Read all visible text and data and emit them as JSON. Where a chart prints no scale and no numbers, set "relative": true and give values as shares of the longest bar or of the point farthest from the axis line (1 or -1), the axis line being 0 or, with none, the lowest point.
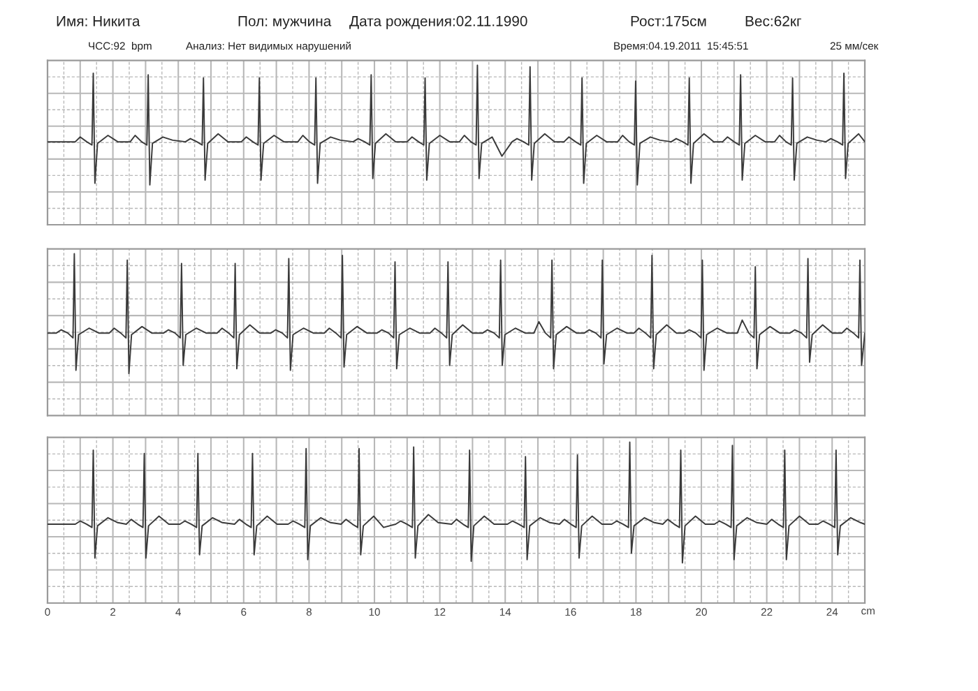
{
  "chart_data": [
    {
      "type": "line",
      "relative": true,
      "color": "#3a3a3a",
      "grid": true,
      "tick_labels": false,
      "xlim": [
        0,
        25
      ],
      "annotations": [
        "Имя: Никита",
        "Пол: мужчина",
        "Дата рождения:02.11.1990",
        "Рост:175см",
        "Вес:62кг",
        "ЧСС:92  bpm",
        "Анализ: Нет видимых нарушений",
        "Время:04.19.2011  15:45:51",
        "25 мм/сек"
      ],
      "xticks": [
        0,
        {
          "value": 0.5,
          "label": null
        },
        {
          "value": 1,
          "label": null
        },
        {
          "value": 1.5,
          "label": null
        },
        2,
        {
          "value": 2.5,
          "label": null
        },
        {
          "value": 3,
          "label": null
        },
        {
          "value": 3.5,
          "label": null
        },
        4,
        {
          "value": 4.5,
          "label": null
        },
        {
          "value": 5,
          "label": null
        },
        {
          "value": 5.5,
          "label": null
        },
        6,
        {
          "value": 6.5,
          "label": null
        },
        {
          "value": 7,
          "label": null
        },
        {
          "value": 7.5,
          "label": null
        },
        8,
        {
          "value": 8.5,
          "label": null
        },
        {
          "value": 9,
          "label": null
        },
        {
          "value": 9.5,
          "label": null
        },
        10,
        {
          "value": 10.5,
          "label": null
        },
        {
          "value": 11,
          "label": null
        },
        {
          "value": 11.5,
          "label": null
        },
        12,
        {
          "value": 12.5,
          "label": null
        },
        {
          "value": 13,
          "label": null
        },
        {
          "value": 13.5,
          "label": null
        },
        14,
        {
          "value": 14.5,
          "label": null
        },
        {
          "value": 15,
          "label": null
        },
        {
          "value": 15.5,
          "label": null
        },
        16,
        {
          "value": 16.5,
          "label": null
        },
        {
          "value": 17,
          "label": null
        },
        {
          "value": 17.5,
          "label": null
        },
        18,
        {
          "value": 18.5,
          "label": null
        },
        {
          "value": 19,
          "label": null
        },
        {
          "value": 19.5,
          "label": null
        },
        20,
        {
          "value": 20.5,
          "label": null
        },
        {
          "value": 21,
          "label": null
        },
        {
          "value": 21.5,
          "label": null
        },
        22,
        {
          "value": 22.5,
          "label": null
        },
        {
          "value": 23,
          "label": null
        },
        {
          "value": 23.5,
          "label": null
        },
        24,
        {
          "value": 24.5,
          "label": null
        }
      ],
      "x": [
        0,
        0.85,
        1.0,
        1.2,
        1.36,
        1.4,
        1.45,
        1.53,
        1.85,
        2.15,
        2.53,
        2.68,
        2.88,
        3.04,
        3.08,
        3.13,
        3.21,
        3.53,
        3.83,
        4.22,
        4.37,
        4.57,
        4.73,
        4.77,
        4.82,
        4.9,
        5.22,
        5.52,
        5.93,
        6.08,
        6.28,
        6.44,
        6.48,
        6.53,
        6.61,
        6.93,
        7.23,
        7.66,
        7.81,
        8.01,
        8.17,
        8.21,
        8.26,
        8.34,
        8.66,
        8.96,
        9.35,
        9.5,
        9.7,
        9.86,
        9.9,
        9.95,
        10.03,
        10.35,
        10.65,
        11.0,
        11.15,
        11.35,
        11.51,
        11.55,
        11.6,
        11.68,
        12.0,
        12.3,
        12.6,
        12.75,
        12.95,
        13.11,
        13.15,
        13.2,
        13.28,
        13.6,
        13.9,
        14.21,
        14.36,
        14.56,
        14.72,
        14.76,
        14.81,
        14.89,
        15.21,
        15.51,
        15.8,
        15.95,
        16.15,
        16.31,
        16.35,
        16.4,
        16.48,
        16.8,
        17.1,
        17.44,
        17.59,
        17.79,
        17.95,
        17.99,
        18.04,
        18.12,
        18.44,
        18.74,
        19.08,
        19.23,
        19.43,
        19.59,
        19.63,
        19.68,
        19.76,
        20.08,
        20.38,
        20.65,
        20.8,
        21.0,
        21.16,
        21.2,
        21.25,
        21.33,
        21.65,
        21.95,
        22.24,
        22.39,
        22.59,
        22.75,
        22.79,
        22.84,
        22.92,
        23.24,
        23.54,
        23.81,
        23.96,
        24.16,
        24.32,
        24.36,
        24.41,
        24.49,
        24.81,
        25
      ],
      "values": [
        0.52,
        0.52,
        0.55,
        0.52,
        0.5,
        0.95,
        0.26,
        0.51,
        0.56,
        0.52,
        0.52,
        0.56,
        0.52,
        0.5,
        0.94,
        0.25,
        0.51,
        0.55,
        0.53,
        0.52,
        0.54,
        0.52,
        0.5,
        0.92,
        0.28,
        0.51,
        0.57,
        0.52,
        0.52,
        0.55,
        0.52,
        0.5,
        0.92,
        0.28,
        0.51,
        0.56,
        0.52,
        0.52,
        0.56,
        0.52,
        0.5,
        0.92,
        0.26,
        0.51,
        0.55,
        0.53,
        0.52,
        0.54,
        0.52,
        0.5,
        0.94,
        0.29,
        0.51,
        0.57,
        0.52,
        0.52,
        0.55,
        0.52,
        0.5,
        0.92,
        0.28,
        0.51,
        0.56,
        0.52,
        0.52,
        0.56,
        0.52,
        0.5,
        1.0,
        0.29,
        0.51,
        0.55,
        0.43,
        0.52,
        0.54,
        0.52,
        0.5,
        0.99,
        0.28,
        0.51,
        0.57,
        0.52,
        0.52,
        0.55,
        0.52,
        0.5,
        0.92,
        0.26,
        0.51,
        0.56,
        0.52,
        0.52,
        0.56,
        0.52,
        0.5,
        0.9,
        0.25,
        0.51,
        0.55,
        0.53,
        0.52,
        0.54,
        0.52,
        0.5,
        0.92,
        0.26,
        0.51,
        0.57,
        0.52,
        0.52,
        0.55,
        0.52,
        0.5,
        0.94,
        0.28,
        0.51,
        0.56,
        0.52,
        0.52,
        0.56,
        0.52,
        0.5,
        0.92,
        0.28,
        0.51,
        0.55,
        0.53,
        0.52,
        0.54,
        0.52,
        0.5,
        0.95,
        0.29,
        0.51,
        0.57,
        0.52
      ]
    },
    {
      "type": "line",
      "relative": true,
      "color": "#3a3a3a",
      "grid": true,
      "tick_labels": false,
      "xlim": [
        0,
        25
      ],
      "xticks": [
        0,
        {
          "value": 0.5,
          "label": null
        },
        {
          "value": 1,
          "label": null
        },
        {
          "value": 1.5,
          "label": null
        },
        2,
        {
          "value": 2.5,
          "label": null
        },
        {
          "value": 3,
          "label": null
        },
        {
          "value": 3.5,
          "label": null
        },
        4,
        {
          "value": 4.5,
          "label": null
        },
        {
          "value": 5,
          "label": null
        },
        {
          "value": 5.5,
          "label": null
        },
        6,
        {
          "value": 6.5,
          "label": null
        },
        {
          "value": 7,
          "label": null
        },
        {
          "value": 7.5,
          "label": null
        },
        8,
        {
          "value": 8.5,
          "label": null
        },
        {
          "value": 9,
          "label": null
        },
        {
          "value": 9.5,
          "label": null
        },
        10,
        {
          "value": 10.5,
          "label": null
        },
        {
          "value": 11,
          "label": null
        },
        {
          "value": 11.5,
          "label": null
        },
        12,
        {
          "value": 12.5,
          "label": null
        },
        {
          "value": 13,
          "label": null
        },
        {
          "value": 13.5,
          "label": null
        },
        14,
        {
          "value": 14.5,
          "label": null
        },
        {
          "value": 15,
          "label": null
        },
        {
          "value": 15.5,
          "label": null
        },
        16,
        {
          "value": 16.5,
          "label": null
        },
        {
          "value": 17,
          "label": null
        },
        {
          "value": 17.5,
          "label": null
        },
        18,
        {
          "value": 18.5,
          "label": null
        },
        {
          "value": 19,
          "label": null
        },
        {
          "value": 19.5,
          "label": null
        },
        20,
        {
          "value": 20.5,
          "label": null
        },
        {
          "value": 21,
          "label": null
        },
        {
          "value": 21.5,
          "label": null
        },
        22,
        {
          "value": 22.5,
          "label": null
        },
        {
          "value": 23,
          "label": null
        },
        {
          "value": 23.5,
          "label": null
        },
        24,
        {
          "value": 24.5,
          "label": null
        }
      ],
      "x": [
        0,
        0.27,
        0.42,
        0.62,
        0.78,
        0.82,
        0.87,
        0.95,
        1.27,
        1.57,
        1.89,
        2.04,
        2.24,
        2.4,
        2.44,
        2.49,
        2.57,
        2.89,
        3.19,
        3.55,
        3.7,
        3.9,
        4.06,
        4.1,
        4.15,
        4.23,
        4.55,
        4.85,
        5.19,
        5.34,
        5.54,
        5.7,
        5.74,
        5.79,
        5.87,
        6.19,
        6.49,
        6.83,
        6.98,
        7.18,
        7.34,
        7.38,
        7.43,
        7.51,
        7.83,
        8.13,
        8.47,
        8.62,
        8.82,
        8.98,
        9.02,
        9.07,
        9.15,
        9.47,
        9.77,
        10.08,
        10.23,
        10.43,
        10.59,
        10.63,
        10.68,
        10.76,
        11.08,
        11.38,
        11.7,
        11.85,
        12.05,
        12.21,
        12.25,
        12.3,
        12.38,
        12.7,
        13.0,
        13.31,
        13.46,
        13.66,
        13.82,
        13.86,
        13.91,
        13.99,
        14.31,
        14.61,
        14.88,
        15.03,
        15.23,
        15.39,
        15.43,
        15.48,
        15.56,
        15.88,
        16.18,
        16.42,
        16.57,
        16.77,
        16.93,
        16.97,
        17.02,
        17.1,
        17.42,
        17.72,
        17.94,
        18.09,
        18.29,
        18.45,
        18.49,
        18.54,
        18.62,
        18.94,
        19.24,
        19.48,
        19.63,
        19.83,
        19.99,
        20.03,
        20.08,
        20.16,
        20.48,
        20.78,
        21.1,
        21.25,
        21.45,
        21.61,
        21.65,
        21.7,
        21.78,
        22.1,
        22.4,
        22.71,
        22.86,
        23.06,
        23.22,
        23.26,
        23.31,
        23.39,
        23.71,
        24.01,
        24.3,
        24.45,
        24.65,
        24.81,
        24.85,
        24.9,
        25
      ],
      "values": [
        0.51,
        0.51,
        0.53,
        0.51,
        0.48,
        1.0,
        0.28,
        0.5,
        0.54,
        0.51,
        0.51,
        0.54,
        0.51,
        0.48,
        0.96,
        0.26,
        0.5,
        0.55,
        0.51,
        0.51,
        0.53,
        0.51,
        0.48,
        0.94,
        0.31,
        0.5,
        0.54,
        0.51,
        0.51,
        0.54,
        0.51,
        0.48,
        0.94,
        0.29,
        0.5,
        0.56,
        0.51,
        0.51,
        0.53,
        0.51,
        0.48,
        0.97,
        0.28,
        0.5,
        0.54,
        0.51,
        0.51,
        0.54,
        0.51,
        0.48,
        0.99,
        0.3,
        0.5,
        0.55,
        0.51,
        0.51,
        0.53,
        0.51,
        0.48,
        0.95,
        0.29,
        0.5,
        0.54,
        0.51,
        0.51,
        0.54,
        0.51,
        0.48,
        0.95,
        0.31,
        0.5,
        0.56,
        0.51,
        0.51,
        0.53,
        0.51,
        0.48,
        0.96,
        0.31,
        0.5,
        0.54,
        0.51,
        0.51,
        0.58,
        0.51,
        0.48,
        0.96,
        0.29,
        0.5,
        0.55,
        0.51,
        0.51,
        0.53,
        0.51,
        0.48,
        0.96,
        0.32,
        0.5,
        0.54,
        0.51,
        0.51,
        0.54,
        0.51,
        0.48,
        0.99,
        0.29,
        0.5,
        0.56,
        0.51,
        0.51,
        0.53,
        0.51,
        0.48,
        0.96,
        0.28,
        0.5,
        0.54,
        0.51,
        0.51,
        0.59,
        0.51,
        0.48,
        0.92,
        0.29,
        0.5,
        0.55,
        0.51,
        0.51,
        0.53,
        0.51,
        0.48,
        0.97,
        0.33,
        0.5,
        0.56,
        0.51,
        0.51,
        0.54,
        0.51,
        0.48,
        0.96,
        0.31,
        0.51
      ]
    },
    {
      "type": "line",
      "relative": true,
      "color": "#3a3a3a",
      "grid": true,
      "tick_labels": "x",
      "xlim": [
        0,
        25
      ],
      "xlabel": "cm",
      "xticks": [
        0,
        {
          "value": 0.5,
          "label": null
        },
        {
          "value": 1,
          "label": null
        },
        {
          "value": 1.5,
          "label": null
        },
        2,
        {
          "value": 2.5,
          "label": null
        },
        {
          "value": 3,
          "label": null
        },
        {
          "value": 3.5,
          "label": null
        },
        4,
        {
          "value": 4.5,
          "label": null
        },
        {
          "value": 5,
          "label": null
        },
        {
          "value": 5.5,
          "label": null
        },
        6,
        {
          "value": 6.5,
          "label": null
        },
        {
          "value": 7,
          "label": null
        },
        {
          "value": 7.5,
          "label": null
        },
        8,
        {
          "value": 8.5,
          "label": null
        },
        {
          "value": 9,
          "label": null
        },
        {
          "value": 9.5,
          "label": null
        },
        10,
        {
          "value": 10.5,
          "label": null
        },
        {
          "value": 11,
          "label": null
        },
        {
          "value": 11.5,
          "label": null
        },
        12,
        {
          "value": 12.5,
          "label": null
        },
        {
          "value": 13,
          "label": null
        },
        {
          "value": 13.5,
          "label": null
        },
        14,
        {
          "value": 14.5,
          "label": null
        },
        {
          "value": 15,
          "label": null
        },
        {
          "value": 15.5,
          "label": null
        },
        16,
        {
          "value": 16.5,
          "label": null
        },
        {
          "value": 17,
          "label": null
        },
        {
          "value": 17.5,
          "label": null
        },
        18,
        {
          "value": 18.5,
          "label": null
        },
        {
          "value": 19,
          "label": null
        },
        {
          "value": 19.5,
          "label": null
        },
        20,
        {
          "value": 20.5,
          "label": null
        },
        {
          "value": 21,
          "label": null
        },
        {
          "value": 21.5,
          "label": null
        },
        22,
        {
          "value": 22.5,
          "label": null
        },
        {
          "value": 23,
          "label": null
        },
        {
          "value": 23.5,
          "label": null
        },
        24,
        {
          "value": 24.5,
          "label": null
        }
      ],
      "x": [
        0,
        0.85,
        1.0,
        1.2,
        1.36,
        1.4,
        1.45,
        1.53,
        1.85,
        2.15,
        2.41,
        2.56,
        2.76,
        2.92,
        2.96,
        3.01,
        3.09,
        3.41,
        3.71,
        4.05,
        4.2,
        4.4,
        4.56,
        4.6,
        4.65,
        4.73,
        5.05,
        5.35,
        5.72,
        5.87,
        6.07,
        6.23,
        6.27,
        6.32,
        6.4,
        6.72,
        7.02,
        7.36,
        7.51,
        7.71,
        7.87,
        7.91,
        7.96,
        8.04,
        8.36,
        8.66,
        8.98,
        9.13,
        9.33,
        9.49,
        9.53,
        9.58,
        9.66,
        9.98,
        10.28,
        10.65,
        10.8,
        11.0,
        11.16,
        11.2,
        11.25,
        11.33,
        11.65,
        11.95,
        12.36,
        12.51,
        12.71,
        12.87,
        12.91,
        12.96,
        13.04,
        13.36,
        13.66,
        14.07,
        14.22,
        14.42,
        14.58,
        14.62,
        14.67,
        14.75,
        15.07,
        15.37,
        15.66,
        15.81,
        16.01,
        16.17,
        16.21,
        16.26,
        16.34,
        16.66,
        16.96,
        17.26,
        17.41,
        17.61,
        17.77,
        17.81,
        17.86,
        17.94,
        18.26,
        18.56,
        18.82,
        18.97,
        19.17,
        19.33,
        19.37,
        19.42,
        19.5,
        19.82,
        20.12,
        20.4,
        20.55,
        20.75,
        20.91,
        20.95,
        21.0,
        21.08,
        21.4,
        21.7,
        22.0,
        22.15,
        22.35,
        22.51,
        22.55,
        22.6,
        22.68,
        23.0,
        23.3,
        23.57,
        23.72,
        23.92,
        24.08,
        24.12,
        24.17,
        24.25,
        24.57,
        24.87,
        25
      ],
      "values": [
        0.49,
        0.49,
        0.51,
        0.49,
        0.47,
        0.95,
        0.28,
        0.48,
        0.53,
        0.5,
        0.49,
        0.52,
        0.49,
        0.47,
        0.93,
        0.28,
        0.48,
        0.54,
        0.49,
        0.49,
        0.51,
        0.49,
        0.47,
        0.93,
        0.3,
        0.48,
        0.53,
        0.5,
        0.49,
        0.52,
        0.49,
        0.47,
        0.93,
        0.3,
        0.48,
        0.54,
        0.49,
        0.49,
        0.51,
        0.49,
        0.47,
        0.96,
        0.27,
        0.48,
        0.53,
        0.5,
        0.49,
        0.52,
        0.49,
        0.47,
        0.96,
        0.3,
        0.48,
        0.54,
        0.47,
        0.49,
        0.51,
        0.49,
        0.47,
        0.97,
        0.28,
        0.48,
        0.55,
        0.5,
        0.49,
        0.52,
        0.49,
        0.47,
        0.95,
        0.26,
        0.48,
        0.54,
        0.49,
        0.49,
        0.51,
        0.49,
        0.47,
        0.91,
        0.27,
        0.48,
        0.53,
        0.5,
        0.49,
        0.52,
        0.49,
        0.47,
        0.92,
        0.28,
        0.48,
        0.54,
        0.49,
        0.49,
        0.51,
        0.49,
        0.47,
        1.0,
        0.31,
        0.48,
        0.53,
        0.5,
        0.49,
        0.52,
        0.49,
        0.47,
        0.95,
        0.25,
        0.48,
        0.54,
        0.49,
        0.49,
        0.51,
        0.49,
        0.47,
        0.98,
        0.27,
        0.48,
        0.53,
        0.5,
        0.49,
        0.52,
        0.49,
        0.47,
        0.95,
        0.27,
        0.48,
        0.54,
        0.49,
        0.49,
        0.51,
        0.49,
        0.47,
        0.95,
        0.3,
        0.48,
        0.53,
        0.5,
        0.49
      ]
    }
  ]
}
